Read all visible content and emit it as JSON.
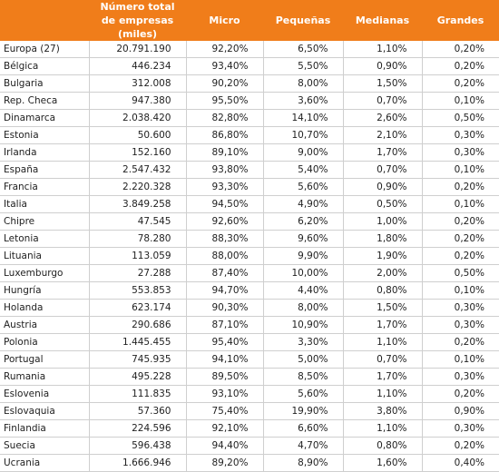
{
  "table": {
    "header": [
      "",
      "Número total de empresas (miles)",
      "Micro",
      "Pequeñas",
      "Medianas",
      "Grandes"
    ],
    "rows": [
      [
        "Europa (27)",
        "20.791.190",
        "92,20%",
        "6,50%",
        "1,10%",
        "0,20%"
      ],
      [
        "Bélgica",
        "446.234",
        "93,40%",
        "5,50%",
        "0,90%",
        "0,20%"
      ],
      [
        "Bulgaria",
        "312.008",
        "90,20%",
        "8,00%",
        "1,50%",
        "0,20%"
      ],
      [
        "Rep. Checa",
        "947.380",
        "95,50%",
        "3,60%",
        "0,70%",
        "0,10%"
      ],
      [
        "Dinamarca",
        "2.038.420",
        "82,80%",
        "14,10%",
        "2,60%",
        "0,50%"
      ],
      [
        "Estonia",
        "50.600",
        "86,80%",
        "10,70%",
        "2,10%",
        "0,30%"
      ],
      [
        "Irlanda",
        "152.160",
        "89,10%",
        "9,00%",
        "1,70%",
        "0,30%"
      ],
      [
        "España",
        "2.547.432",
        "93,80%",
        "5,40%",
        "0,70%",
        "0,10%"
      ],
      [
        "Francia",
        "2.220.328",
        "93,30%",
        "5,60%",
        "0,90%",
        "0,20%"
      ],
      [
        "Italia",
        "3.849.258",
        "94,50%",
        "4,90%",
        "0,50%",
        "0,10%"
      ],
      [
        "Chipre",
        "47.545",
        "92,60%",
        "6,20%",
        "1,00%",
        "0,20%"
      ],
      [
        "Letonia",
        "78.280",
        "88,30%",
        "9,60%",
        "1,80%",
        "0,20%"
      ],
      [
        "Lituania",
        "113.059",
        "88,00%",
        "9,90%",
        "1,90%",
        "0,20%"
      ],
      [
        "Luxemburgo",
        "27.288",
        "87,40%",
        "10,00%",
        "2,00%",
        "0,50%"
      ],
      [
        "Hungría",
        "553.853",
        "94,70%",
        "4,40%",
        "0,80%",
        "0,10%"
      ],
      [
        "Holanda",
        "623.174",
        "90,30%",
        "8,00%",
        "1,50%",
        "0,30%"
      ],
      [
        "Austria",
        "290.686",
        "87,10%",
        "10,90%",
        "1,70%",
        "0,30%"
      ],
      [
        "Polonia",
        "1.445.455",
        "95,40%",
        "3,30%",
        "1,10%",
        "0,20%"
      ],
      [
        "Portugal",
        "745.935",
        "94,10%",
        "5,00%",
        "0,70%",
        "0,10%"
      ],
      [
        "Rumania",
        "495.228",
        "89,50%",
        "8,50%",
        "1,70%",
        "0,30%"
      ],
      [
        "Eslovenia",
        "111.835",
        "93,10%",
        "5,60%",
        "1,10%",
        "0,20%"
      ],
      [
        "Eslovaquia",
        "57.360",
        "75,40%",
        "19,90%",
        "3,80%",
        "0,90%"
      ],
      [
        "Finlandia",
        "224.596",
        "92,10%",
        "6,60%",
        "1,10%",
        "0,30%"
      ],
      [
        "Suecia",
        "596.438",
        "94,40%",
        "4,70%",
        "0,80%",
        "0,20%"
      ],
      [
        "Ucrania",
        "1.666.946",
        "89,20%",
        "8,90%",
        "1,60%",
        "0,40%"
      ]
    ]
  }
}
